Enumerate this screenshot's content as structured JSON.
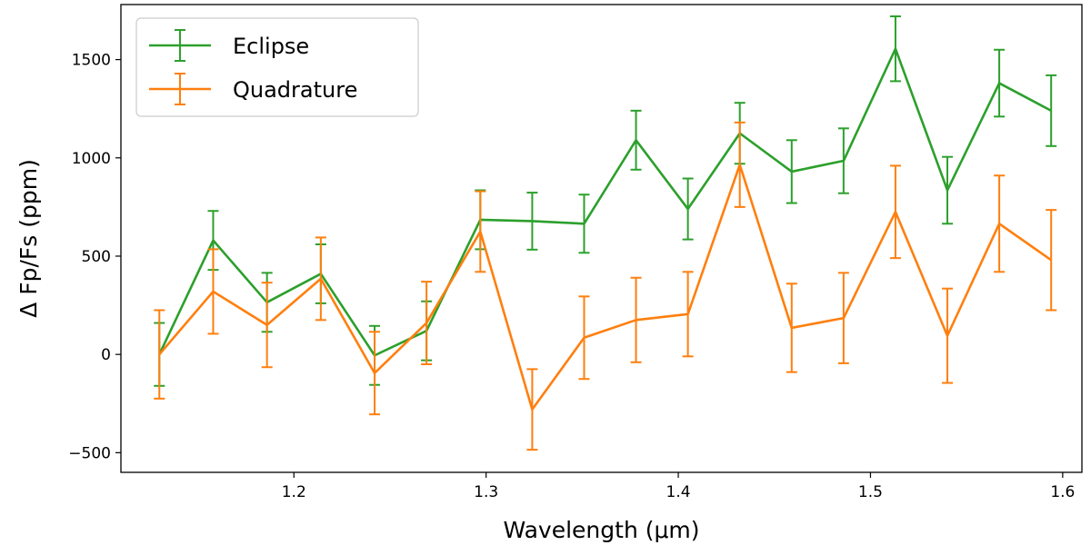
{
  "chart_data": {
    "type": "line",
    "title": "",
    "xlabel": "Wavelength (μm)",
    "ylabel": "Δ Fp/Fs (ppm)",
    "xlim": [
      1.11,
      1.61
    ],
    "ylim": [
      -600,
      1780
    ],
    "xticks": [
      1.2,
      1.3,
      1.4,
      1.5,
      1.6
    ],
    "xtick_labels": [
      "1.2",
      "1.3",
      "1.4",
      "1.5",
      "1.6"
    ],
    "yticks": [
      -500,
      0,
      500,
      1000,
      1500
    ],
    "ytick_labels": [
      "−500",
      "0",
      "500",
      "1000",
      "1500"
    ],
    "grid": false,
    "legend_position": "top-left",
    "x": [
      1.13,
      1.158,
      1.186,
      1.214,
      1.242,
      1.269,
      1.297,
      1.324,
      1.351,
      1.378,
      1.405,
      1.432,
      1.459,
      1.486,
      1.513,
      1.54,
      1.567,
      1.594
    ],
    "series": [
      {
        "name": "Eclipse",
        "color": "#2ca02c",
        "values": [
          0,
          580,
          265,
          410,
          -5,
          120,
          685,
          678,
          665,
          1090,
          740,
          1125,
          930,
          985,
          1555,
          835,
          1380,
          1240
        ],
        "errors": [
          160,
          150,
          150,
          150,
          150,
          150,
          150,
          145,
          148,
          150,
          155,
          155,
          160,
          165,
          165,
          170,
          170,
          180
        ]
      },
      {
        "name": "Quadrature",
        "color": "#ff7f0e",
        "values": [
          0,
          320,
          150,
          385,
          -95,
          160,
          625,
          -280,
          85,
          175,
          205,
          965,
          135,
          185,
          725,
          95,
          665,
          480
        ],
        "errors": [
          225,
          215,
          215,
          210,
          210,
          210,
          205,
          205,
          210,
          215,
          215,
          215,
          225,
          230,
          235,
          240,
          245,
          255
        ]
      }
    ]
  }
}
